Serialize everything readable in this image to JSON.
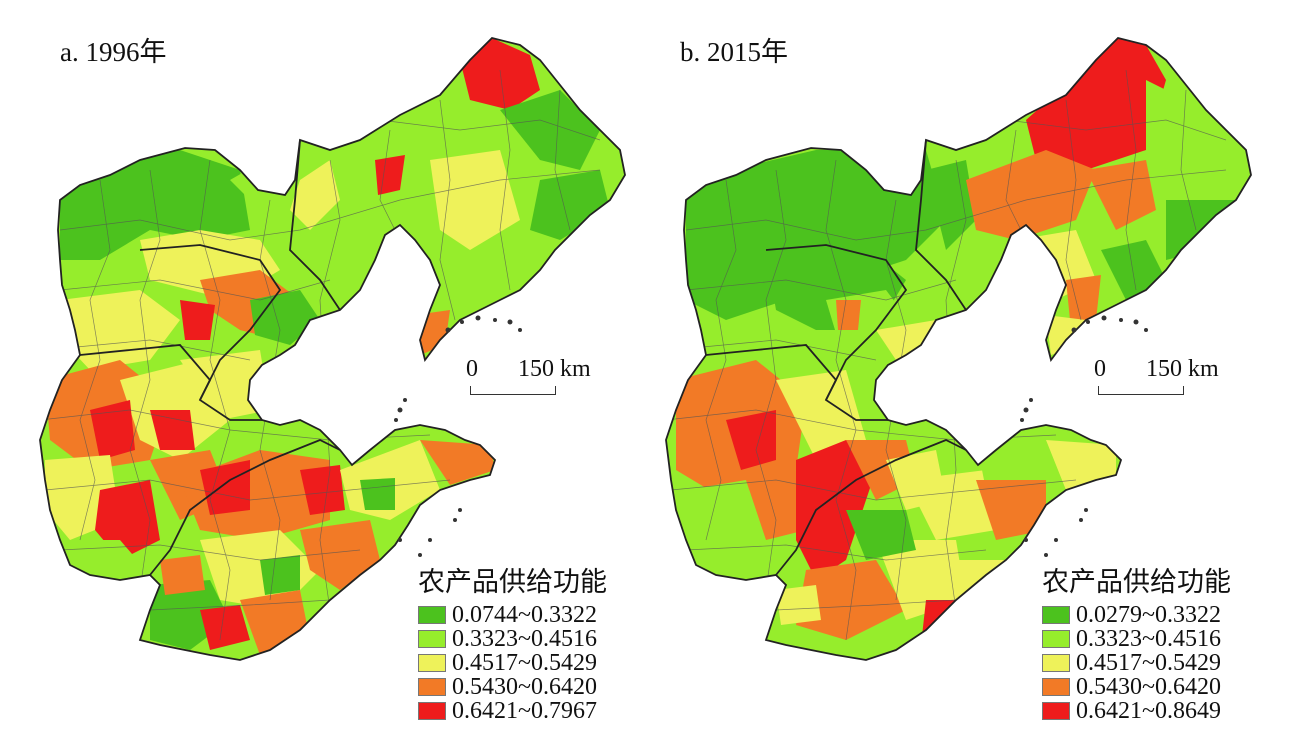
{
  "colors": {
    "dark_green": "#4cc21e",
    "light_green": "#96ed2c",
    "yellow": "#eef25a",
    "orange": "#f27a26",
    "red": "#ee1c1c",
    "boundary": "#555555",
    "sea_islands": "#333333"
  },
  "panels": [
    {
      "id": "a",
      "title": "a. 1996年",
      "scale": {
        "zero": "0",
        "distance": "150 km"
      },
      "legend": {
        "title": "农产品供给功能",
        "classes": [
          {
            "label": "0.0744~0.3322",
            "color": "#4cc21e"
          },
          {
            "label": "0.3323~0.4516",
            "color": "#96ed2c"
          },
          {
            "label": "0.4517~0.5429",
            "color": "#eef25a"
          },
          {
            "label": "0.5430~0.6420",
            "color": "#f27a26"
          },
          {
            "label": "0.6421~0.7967",
            "color": "#ee1c1c"
          }
        ]
      }
    },
    {
      "id": "b",
      "title": "b. 2015年",
      "scale": {
        "zero": "0",
        "distance": "150 km"
      },
      "legend": {
        "title": "农产品供给功能",
        "classes": [
          {
            "label": "0.0279~0.3322",
            "color": "#4cc21e"
          },
          {
            "label": "0.3323~0.4516",
            "color": "#96ed2c"
          },
          {
            "label": "0.4517~0.5429",
            "color": "#eef25a"
          },
          {
            "label": "0.5430~0.6420",
            "color": "#f27a26"
          },
          {
            "label": "0.6421~0.8649",
            "color": "#ee1c1c"
          }
        ]
      }
    }
  ]
}
